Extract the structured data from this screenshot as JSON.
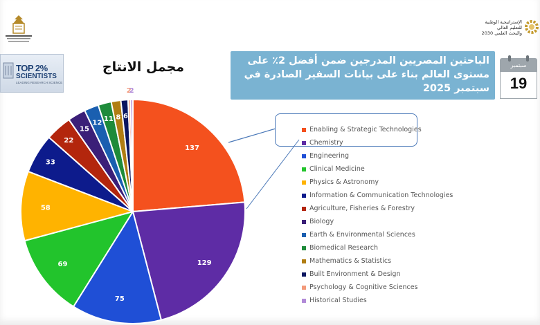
{
  "header": {
    "left_logo_icon": "ministry-emblem-icon",
    "right_logo_lines": [
      "الإستراتيجية الوطنية",
      "للتعليم العالي",
      "والبحث العلمي 2030"
    ],
    "right_logo_icon": "strategy-gear-icon"
  },
  "badge": {
    "word": "TOP 2%",
    "sub": "SCIENTISTS",
    "tag": "LEADING RESEARCH SCIENCE",
    "icon": "laurel-icon"
  },
  "chart_title": "مجمل الانتاج",
  "headline": "الباحثين المصريين المدرجين ضمن أفضل 2٪ على مستوى العالم بناء على بيانات السفير الصادرة في سبتمبر 2025",
  "calendar": {
    "month": "سبتمبر",
    "day": "19",
    "icon": "calendar-icon"
  },
  "chart_data": {
    "type": "pie",
    "title": "مجمل الانتاج",
    "legend_position": "right",
    "slices": [
      {
        "label": "Enabling & Strategic Technologies",
        "value": 137,
        "color": "#f4511e"
      },
      {
        "label": "Chemistry",
        "value": 129,
        "color": "#5e2ca5"
      },
      {
        "label": "Engineering",
        "value": 75,
        "color": "#1f4fd6"
      },
      {
        "label": "Clinical Medicine",
        "value": 69,
        "color": "#22c42c"
      },
      {
        "label": "Physics & Astronomy",
        "value": 58,
        "color": "#ffb300"
      },
      {
        "label": "Information & Communication Technologies",
        "value": 33,
        "color": "#0d1b8c"
      },
      {
        "label": "Agriculture, Fisheries & Forestry",
        "value": 22,
        "color": "#b3260d"
      },
      {
        "label": "Biology",
        "value": 15,
        "color": "#3b1f78"
      },
      {
        "label": "Earth & Environmental Sciences",
        "value": 12,
        "color": "#1a5fb0"
      },
      {
        "label": "Biomedical Research",
        "value": 11,
        "color": "#1e8b3a"
      },
      {
        "label": "Mathematics & Statistics",
        "value": 8,
        "color": "#b07d12"
      },
      {
        "label": "Built Environment & Design",
        "value": 6,
        "color": "#0a1660"
      },
      {
        "label": "Psychology & Cognitive Sciences",
        "value": 2,
        "color": "#f39a7a"
      },
      {
        "label": "Historical Studies",
        "value": 2,
        "color": "#b18ad8"
      }
    ]
  }
}
